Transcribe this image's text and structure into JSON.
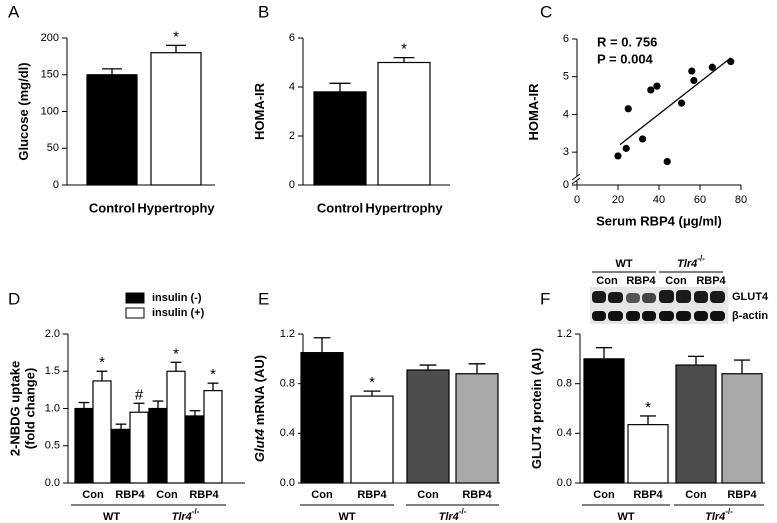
{
  "chart_data": [
    {
      "panel": "A",
      "type": "bar",
      "ylabel": "Glucose (mg/dl)",
      "categories": [
        "Control",
        "Hypertrophy"
      ],
      "series": [
        {
          "values": [
            150,
            180
          ],
          "errors": [
            8,
            10
          ],
          "colors": [
            "#000000",
            "#ffffff"
          ],
          "markers": [
            null,
            "*"
          ]
        }
      ],
      "ylim": [
        0,
        200
      ],
      "yticks": [
        0,
        50,
        100,
        150,
        200
      ]
    },
    {
      "panel": "B",
      "type": "bar",
      "ylabel": "HOMA-IR",
      "categories": [
        "Control",
        "Hypertrophy"
      ],
      "series": [
        {
          "values": [
            3.8,
            5.0
          ],
          "errors": [
            0.35,
            0.2
          ],
          "colors": [
            "#000000",
            "#ffffff"
          ],
          "markers": [
            null,
            "*"
          ]
        }
      ],
      "ylim": [
        0,
        6
      ],
      "yticks": [
        0,
        2,
        4,
        6
      ]
    },
    {
      "panel": "C",
      "type": "scatter",
      "xlabel": "Serum RBP4 (μg/ml)",
      "ylabel": "HOMA-IR",
      "annotations": [
        "R = 0. 756",
        "P = 0.004"
      ],
      "x": [
        20,
        24,
        25,
        32,
        36,
        39,
        44,
        51,
        56,
        57,
        66,
        75
      ],
      "y": [
        2.9,
        3.1,
        4.15,
        3.35,
        4.65,
        4.75,
        2.75,
        4.3,
        5.15,
        4.9,
        5.25,
        5.4
      ],
      "fit": {
        "x": [
          21,
          75
        ],
        "y": [
          3.2,
          5.5
        ]
      },
      "xlim": [
        0,
        80
      ],
      "xticks": [
        0,
        20,
        40,
        60,
        80
      ],
      "ylim": [
        0,
        6
      ],
      "yticks": [
        0,
        3,
        4,
        5,
        6
      ],
      "axis_break": [
        0,
        2.5
      ]
    },
    {
      "panel": "D",
      "type": "grouped_bar",
      "ylabel": [
        "2-NBDG uptake",
        "(fold change)"
      ],
      "categories": [
        "Con",
        "RBP4",
        "Con",
        "RBP4"
      ],
      "groups": [
        {
          "label": "WT"
        },
        {
          "label": "Tlr4",
          "sup": "-/-"
        }
      ],
      "series": [
        {
          "name": "insulin (-)",
          "color": "#000000",
          "values": [
            1.0,
            0.72,
            1.0,
            0.9
          ],
          "errors": [
            0.08,
            0.07,
            0.1,
            0.07
          ]
        },
        {
          "name": "insulin (+)",
          "color": "#ffffff",
          "values": [
            1.37,
            0.95,
            1.5,
            1.24
          ],
          "errors": [
            0.13,
            0.12,
            0.12,
            0.1
          ],
          "markers": [
            "*",
            "#",
            "*",
            "*"
          ]
        }
      ],
      "ylim": [
        0,
        2
      ],
      "yticks": [
        {
          "value": 0,
          "label": "0.0"
        },
        0.5,
        {
          "value": 1,
          "label": "1.0"
        },
        1.5,
        {
          "value": 2,
          "label": "2.0"
        }
      ]
    },
    {
      "panel": "E",
      "type": "bar",
      "ylabel_italic": "Glut4",
      "ylabel": "mRNA (AU)",
      "categories": [
        "Con",
        "RBP4",
        "Con",
        "RBP4"
      ],
      "groups": [
        {
          "label": "WT"
        },
        {
          "label": "Tlr4",
          "sup": "-/-"
        }
      ],
      "series": [
        {
          "values": [
            1.05,
            0.7,
            0.91,
            0.88
          ],
          "errors": [
            0.12,
            0.04,
            0.04,
            0.08
          ],
          "colors": [
            "#000000",
            "#ffffff",
            "#4d4d4d",
            "#a8a8a8"
          ],
          "markers": [
            null,
            "*",
            null,
            null
          ]
        }
      ],
      "ylim": [
        0,
        1.2
      ],
      "yticks": [
        {
          "value": 0,
          "label": "0.0"
        },
        0.4,
        0.8,
        1.2
      ]
    },
    {
      "panel": "F",
      "type": "bar",
      "ylabel": "GLUT4 protein (AU)",
      "categories": [
        "Con",
        "RBP4",
        "Con",
        "RBP4"
      ],
      "groups": [
        {
          "label": "WT"
        },
        {
          "label": "Tlr4",
          "sup": "-/-"
        }
      ],
      "series": [
        {
          "values": [
            1.0,
            0.47,
            0.95,
            0.88
          ],
          "errors": [
            0.09,
            0.07,
            0.07,
            0.11
          ],
          "colors": [
            "#000000",
            "#ffffff",
            "#4d4d4d",
            "#a8a8a8"
          ],
          "markers": [
            null,
            "*",
            null,
            null
          ]
        }
      ],
      "ylim": [
        0,
        1.2
      ],
      "yticks": [
        {
          "value": 0,
          "label": "0.0"
        },
        0.4,
        0.8,
        1.2
      ],
      "blot": {
        "groups": [
          {
            "label": "WT"
          },
          {
            "label": "Tlr4",
            "sup": "-/-"
          }
        ],
        "lanes": [
          "Con",
          "RBP4",
          "Con",
          "RBP4"
        ],
        "bands": [
          "GLUT4",
          "β-actin"
        ]
      }
    }
  ]
}
